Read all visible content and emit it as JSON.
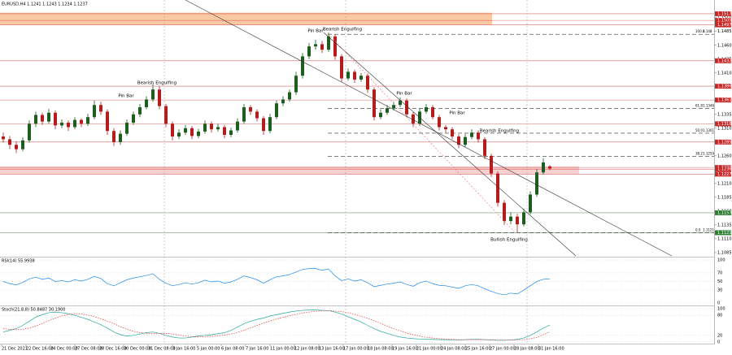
{
  "chart_data": [
    {
      "type": "candlestick",
      "title": "EURUSD,H4  1.1241 1.1243 1.1234 1.1237",
      "up_color": "#1b5e20",
      "down_color": "#b71c1c",
      "open": [
        1.1295,
        1.129,
        1.128,
        1.1272,
        1.1288,
        1.1318,
        1.1334,
        1.1322,
        1.1338,
        1.1315,
        1.132,
        1.1312,
        1.1325,
        1.1318,
        1.133,
        1.1352,
        1.134,
        1.1305,
        1.1285,
        1.13,
        1.132,
        1.1335,
        1.1348,
        1.1362,
        1.138,
        1.135,
        1.1318,
        1.1295,
        1.1302,
        1.131,
        1.1296,
        1.1304,
        1.1318,
        1.1308,
        1.1312,
        1.1298,
        1.1306,
        1.1322,
        1.1348,
        1.134,
        1.1328,
        1.1305,
        1.133,
        1.1355,
        1.1362,
        1.1375,
        1.1405,
        1.144,
        1.1458,
        1.1462,
        1.1452,
        1.1476,
        1.144,
        1.14,
        1.1412,
        1.1398,
        1.1405,
        1.138,
        1.133,
        1.1338,
        1.1346,
        1.1352,
        1.136,
        1.1335,
        1.1318,
        1.134,
        1.1348,
        1.133,
        1.1312,
        1.1308,
        1.1295,
        1.128,
        1.1294,
        1.1302,
        1.129,
        1.126,
        1.1228,
        1.1175,
        1.1142,
        1.115,
        1.1136,
        1.1158,
        1.119,
        1.123,
        1.1241
      ],
      "high": [
        1.1302,
        1.1296,
        1.1286,
        1.1294,
        1.1324,
        1.134,
        1.1338,
        1.1345,
        1.1342,
        1.1326,
        1.1324,
        1.133,
        1.1328,
        1.1336,
        1.136,
        1.1358,
        1.1344,
        1.131,
        1.1306,
        1.1326,
        1.134,
        1.1354,
        1.1368,
        1.139,
        1.1386,
        1.1354,
        1.1322,
        1.1308,
        1.1316,
        1.1314,
        1.1309,
        1.1324,
        1.1322,
        1.1318,
        1.1316,
        1.1311,
        1.1328,
        1.1354,
        1.1352,
        1.1344,
        1.1332,
        1.1336,
        1.136,
        1.1368,
        1.138,
        1.1412,
        1.1446,
        1.1464,
        1.147,
        1.1468,
        1.1483,
        1.148,
        1.1444,
        1.1418,
        1.1416,
        1.141,
        1.1409,
        1.1384,
        1.1344,
        1.1352,
        1.1358,
        1.1366,
        1.1364,
        1.1339,
        1.1346,
        1.1354,
        1.1352,
        1.1334,
        1.1316,
        1.1312,
        1.1299,
        1.13,
        1.1308,
        1.1306,
        1.1294,
        1.1264,
        1.1232,
        1.118,
        1.1158,
        1.1155,
        1.1164,
        1.1196,
        1.1236,
        1.1256,
        1.1243
      ],
      "low": [
        1.1284,
        1.1272,
        1.1265,
        1.1268,
        1.1284,
        1.1312,
        1.1316,
        1.1318,
        1.1308,
        1.131,
        1.1305,
        1.1308,
        1.1312,
        1.1314,
        1.1326,
        1.1334,
        1.1298,
        1.1278,
        1.128,
        1.1296,
        1.1316,
        1.133,
        1.1344,
        1.1358,
        1.1344,
        1.1312,
        1.1288,
        1.129,
        1.1298,
        1.129,
        1.1292,
        1.13,
        1.1302,
        1.1304,
        1.1292,
        1.1294,
        1.1302,
        1.1318,
        1.1334,
        1.1322,
        1.1298,
        1.1301,
        1.1326,
        1.135,
        1.1358,
        1.137,
        1.14,
        1.1435,
        1.1452,
        1.1446,
        1.1448,
        1.1434,
        1.1394,
        1.1396,
        1.1392,
        1.1394,
        1.1374,
        1.1324,
        1.1326,
        1.1334,
        1.1342,
        1.1348,
        1.133,
        1.1312,
        1.1314,
        1.1336,
        1.1326,
        1.1306,
        1.1302,
        1.129,
        1.1274,
        1.1276,
        1.129,
        1.1284,
        1.1254,
        1.1222,
        1.1168,
        1.1135,
        1.1136,
        1.1121,
        1.1132,
        1.1154,
        1.1186,
        1.1226,
        1.1234
      ],
      "close": [
        1.129,
        1.128,
        1.1272,
        1.1288,
        1.1318,
        1.1334,
        1.1322,
        1.1338,
        1.1315,
        1.132,
        1.1312,
        1.1325,
        1.1318,
        1.133,
        1.1352,
        1.134,
        1.1305,
        1.1285,
        1.13,
        1.132,
        1.1335,
        1.1348,
        1.1362,
        1.138,
        1.135,
        1.1318,
        1.1295,
        1.1302,
        1.131,
        1.1296,
        1.1304,
        1.1318,
        1.1308,
        1.1312,
        1.1298,
        1.1306,
        1.1322,
        1.1348,
        1.134,
        1.1328,
        1.1305,
        1.133,
        1.1355,
        1.1362,
        1.1375,
        1.1405,
        1.144,
        1.1458,
        1.1462,
        1.1452,
        1.1476,
        1.144,
        1.14,
        1.1412,
        1.1398,
        1.1405,
        1.138,
        1.133,
        1.1338,
        1.1346,
        1.1352,
        1.136,
        1.1335,
        1.1318,
        1.134,
        1.1348,
        1.133,
        1.1312,
        1.1308,
        1.1295,
        1.128,
        1.1294,
        1.1302,
        1.129,
        1.126,
        1.1228,
        1.1175,
        1.1142,
        1.115,
        1.1136,
        1.1158,
        1.119,
        1.123,
        1.1248,
        1.1237
      ],
      "ylim": [
        1.1079,
        1.1539
      ],
      "yticks": [
        {
          "value": 1.151,
          "label": "1.1510"
        },
        1.1485,
        {
          "value": 1.146,
          "label": "1.1460"
        },
        1.1435,
        {
          "value": 1.141,
          "label": "1.1410"
        },
        1.1385,
        {
          "value": 1.136,
          "label": "1.1360"
        },
        1.1335,
        {
          "value": 1.131,
          "label": "1.1310"
        },
        1.1285,
        {
          "value": 1.126,
          "label": "1.1260"
        },
        1.1235,
        {
          "value": 1.121,
          "label": "1.1210"
        },
        1.1185,
        {
          "value": 1.116,
          "label": "1.1160"
        },
        1.1135,
        {
          "value": 1.111,
          "label": "1.1110"
        },
        1.1085
      ],
      "levels": [
        {
          "value": 1.1517,
          "color": "#c62828"
        },
        {
          "value": 1.1505,
          "color": "#c62828"
        },
        {
          "value": 1.1497,
          "color": "#c62828"
        },
        {
          "value": 1.1432,
          "color": "#c62828"
        },
        {
          "value": 1.1386,
          "color": "#c62828"
        },
        {
          "value": 1.1361,
          "color": "#c62828"
        },
        {
          "value": 1.1318,
          "color": "#c62828"
        },
        {
          "value": 1.1285,
          "color": "#c62828"
        },
        {
          "value": 1.1239,
          "color": "#c62828"
        },
        {
          "value": 1.1236,
          "color": "#c62828"
        },
        {
          "value": 1.1227,
          "color": "#c62828"
        },
        {
          "value": 1.1157,
          "color": "#2e7d32"
        },
        {
          "value": 1.1121,
          "color": "#2e7d32"
        }
      ],
      "zones": [
        {
          "from": 1.1497,
          "to": 1.1519,
          "color": "#f9c9a4"
        },
        {
          "from": 1.1227,
          "to": 1.1241,
          "color": "#f8d0d0"
        }
      ],
      "fib": [
        {
          "level": "100.0",
          "price": 1.148
        },
        {
          "level": "61.8",
          "price": 1.1346
        },
        {
          "level": "50.0",
          "price": 1.1301
        },
        {
          "level": "38.2",
          "price": 1.1259
        },
        {
          "level": "0.0",
          "price": 1.1121
        }
      ],
      "annotations": [
        "Pin Bar",
        "Bearish Engulfing",
        "Bearish Engulfing",
        "Pin Bar",
        "Pin Bar",
        "Pin Bar",
        "Bearish Engulfing",
        "Bullish Engulfing"
      ]
    },
    {
      "type": "line",
      "title": "RSI(14) 55.9938",
      "color": "#1e88e5",
      "values": [
        50,
        45,
        42,
        48,
        56,
        60,
        55,
        58,
        50,
        52,
        49,
        54,
        51,
        55,
        62,
        57,
        45,
        40,
        47,
        54,
        58,
        61,
        64,
        68,
        55,
        46,
        40,
        43,
        47,
        44,
        47,
        53,
        49,
        51,
        46,
        49,
        55,
        63,
        59,
        54,
        46,
        54,
        61,
        63,
        66,
        72,
        78,
        80,
        80,
        76,
        79,
        63,
        52,
        56,
        51,
        54,
        47,
        38,
        41,
        44,
        46,
        49,
        43,
        39,
        47,
        51,
        45,
        41,
        40,
        37,
        34,
        40,
        43,
        40,
        33,
        27,
        22,
        19,
        23,
        21,
        30,
        40,
        50,
        55,
        55.9938
      ],
      "ylim": [
        0,
        100
      ],
      "yticks": [
        0,
        30,
        50,
        70,
        100
      ]
    },
    {
      "type": "line",
      "title": "Stoch(21,8,8) 50.8487 30.1900",
      "series": [
        {
          "color": "#26a69a",
          "dashed": false,
          "values": [
            30,
            35,
            40,
            50,
            62,
            75,
            82,
            88,
            90,
            88,
            85,
            80,
            74,
            68,
            60,
            52,
            42,
            30,
            22,
            18,
            20,
            24,
            28,
            30,
            26,
            20,
            15,
            12,
            12,
            15,
            18,
            20,
            22,
            25,
            28,
            35,
            45,
            55,
            62,
            68,
            72,
            78,
            82,
            86,
            90,
            93,
            95,
            96,
            96,
            95,
            94,
            90,
            84,
            76,
            68,
            60,
            50,
            40,
            32,
            26,
            20,
            15,
            12,
            10,
            9,
            8,
            8,
            7,
            7,
            6,
            6,
            7,
            8,
            8,
            7,
            6,
            5,
            5,
            6,
            8,
            12,
            20,
            30,
            42,
            50.8487
          ]
        },
        {
          "color": "#e53935",
          "dashed": true,
          "values": [
            40,
            38,
            37,
            38,
            42,
            48,
            56,
            64,
            72,
            78,
            83,
            85,
            84,
            81,
            76,
            70,
            63,
            55,
            46,
            38,
            32,
            28,
            26,
            25,
            26,
            26,
            24,
            21,
            18,
            16,
            15,
            16,
            17,
            19,
            21,
            24,
            29,
            35,
            42,
            50,
            57,
            63,
            69,
            74,
            79,
            83,
            87,
            90,
            92,
            94,
            94,
            93,
            91,
            88,
            83,
            77,
            71,
            64,
            56,
            48,
            40,
            33,
            27,
            22,
            18,
            14,
            12,
            10,
            9,
            8,
            7,
            7,
            7,
            7,
            7,
            7,
            6,
            6,
            6,
            6,
            7,
            10,
            14,
            22,
            30.19
          ]
        }
      ],
      "ylim": [
        0,
        100
      ],
      "yticks": [
        0,
        20,
        80,
        100
      ],
      "xtick_labels": [
        "21 Dec 2021",
        "22 Dec 16:00",
        "24 Dec 00:00",
        "27 Dec 08:00",
        "28 Dec 16:00",
        "30 Dec 00:00",
        "31 Dec 08:00",
        "3 Jan 16:00",
        "5 Jan 00:00",
        "6 Jan 08:00",
        "7 Jan 16:00",
        "11 Jan 00:00",
        "12 Jan 08:00",
        "13 Jan 16:00",
        "17 Jan 00:00",
        "18 Jan 08:00",
        "19 Jan 16:00",
        "21 Jan 00:00",
        "24 Jan 08:00",
        "25 Jan 16:00",
        "27 Jan 00:00",
        "28 Jan 08:00",
        "31 Jan 16:00"
      ]
    }
  ]
}
